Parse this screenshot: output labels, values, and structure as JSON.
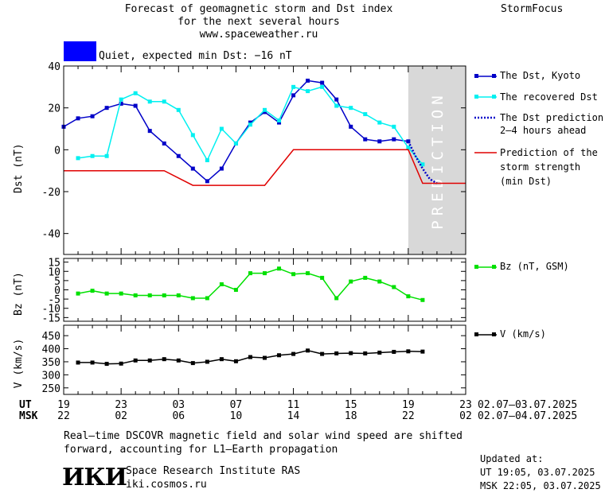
{
  "header": {
    "title_lines": [
      "Forecast of geomagnetic storm and Dst index",
      "for the next several hours",
      "www.spaceweather.ru"
    ],
    "brand": "StormFocus",
    "status_text": "Quiet, expected min Dst: −16 nT",
    "status_color": "#0000ff"
  },
  "colors": {
    "dst": "#0000c8",
    "recovered": "#00f0f0",
    "strength": "#e00000",
    "bz": "#00e000",
    "v": "#000000",
    "prediction_band": "#d8d8d8",
    "prediction_text": "#ffffff"
  },
  "prediction_label": "PREDICTION",
  "legend": {
    "dst": "The Dst, Kyoto",
    "recovered": "The recovered Dst",
    "prediction_lines": [
      "The Dst prediction",
      "2–4 hours ahead"
    ],
    "strength_lines": [
      "Prediction of the",
      "storm strength",
      "(min Dst)"
    ],
    "bz": "Bz (nT, GSM)",
    "v": "V (km/s)"
  },
  "time_axis": {
    "ut_label": "UT",
    "msk_label": "MSK",
    "ut_ticks": [
      "19",
      "23",
      "03",
      "07",
      "11",
      "15",
      "19",
      "23"
    ],
    "msk_ticks": [
      "22",
      "02",
      "06",
      "10",
      "14",
      "18",
      "22",
      "02"
    ],
    "ut_range": "02.07–03.07.2025",
    "msk_range": "02.07–04.07.2025",
    "x_range": [
      0,
      28
    ],
    "tick_every_hours": 4,
    "prediction_start": 24
  },
  "footer": {
    "note_lines": [
      "Real–time DSCOVR magnetic field and solar wind speed are shifted",
      "forward, accounting for L1–Earth propagation"
    ],
    "logo_text": "ИКИ",
    "institute": "Space Research Institute RAS",
    "site": "iki.cosmos.ru",
    "updated_label": "Updated at:",
    "updated_ut": "UT   19:05, 03.07.2025",
    "updated_msk": "MSK 22:05, 03.07.2025"
  },
  "chart_data": [
    {
      "type": "line",
      "ylabel": "Dst (nT)",
      "ylim": [
        -50,
        40
      ],
      "yticks": [
        40,
        20,
        0,
        -20,
        -40
      ],
      "series": [
        {
          "name": "The Dst, Kyoto",
          "x": [
            0,
            1,
            2,
            3,
            4,
            5,
            6,
            7,
            8,
            9,
            10,
            11,
            12,
            13,
            14,
            15,
            16,
            17,
            18,
            19,
            20,
            21,
            22,
            23,
            24
          ],
          "values": [
            11,
            15,
            16,
            20,
            22,
            21,
            9,
            3,
            -3,
            -9,
            -15,
            -9,
            3,
            13,
            18,
            13,
            26,
            33,
            32,
            24,
            11,
            5,
            4,
            5,
            4
          ]
        },
        {
          "name": "The recovered Dst",
          "x": [
            1,
            2,
            3,
            4,
            5,
            6,
            7,
            8,
            9,
            10,
            11,
            12,
            13,
            14,
            15,
            16,
            17,
            18,
            19,
            20,
            21,
            22,
            23,
            24,
            25
          ],
          "values": [
            -4,
            -3,
            -3,
            24,
            27,
            23,
            23,
            19,
            7,
            -5,
            10,
            3,
            12,
            19,
            14,
            30,
            28,
            30,
            21,
            20,
            17,
            13,
            11,
            1,
            -7
          ]
        },
        {
          "name": "The Dst prediction 2–4 hours ahead",
          "x": [
            24,
            24.5,
            25,
            25.5,
            26
          ],
          "values": [
            4,
            -3,
            -9,
            -14,
            -16
          ]
        },
        {
          "name": "Prediction of the storm strength (min Dst)",
          "x": [
            0,
            7,
            9,
            14,
            16,
            24,
            25,
            28
          ],
          "values": [
            -10,
            -10,
            -17,
            -17,
            0,
            0,
            -16,
            -16
          ]
        }
      ]
    },
    {
      "type": "line",
      "ylabel": "Bz (nT)",
      "ylim": [
        -17,
        17
      ],
      "yticks": [
        15,
        10,
        5,
        0,
        -5,
        -10,
        -15
      ],
      "series": [
        {
          "name": "Bz (nT, GSM)",
          "x": [
            1,
            2,
            3,
            4,
            5,
            6,
            7,
            8,
            9,
            10,
            11,
            12,
            13,
            14,
            15,
            16,
            17,
            18,
            19,
            20,
            21,
            22,
            23,
            24,
            25
          ],
          "values": [
            -2,
            -0.5,
            -2,
            -2,
            -3,
            -3,
            -3,
            -3,
            -4.5,
            -4.5,
            3,
            0,
            9,
            9,
            11.5,
            8.5,
            9,
            6.5,
            -4.5,
            4.5,
            6.5,
            4.5,
            1.5,
            -3.5,
            -5.5
          ]
        }
      ]
    },
    {
      "type": "line",
      "ylabel": "V (km/s)",
      "ylim": [
        225,
        490
      ],
      "yticks": [
        450,
        400,
        350,
        300,
        250
      ],
      "series": [
        {
          "name": "V (km/s)",
          "x": [
            1,
            2,
            3,
            4,
            5,
            6,
            7,
            8,
            9,
            10,
            11,
            12,
            13,
            14,
            15,
            16,
            17,
            18,
            19,
            20,
            21,
            22,
            23,
            24,
            25
          ],
          "values": [
            347,
            347,
            342,
            343,
            355,
            355,
            360,
            355,
            345,
            350,
            360,
            352,
            368,
            365,
            375,
            380,
            393,
            380,
            382,
            383,
            382,
            385,
            388,
            390,
            389
          ]
        }
      ]
    }
  ]
}
